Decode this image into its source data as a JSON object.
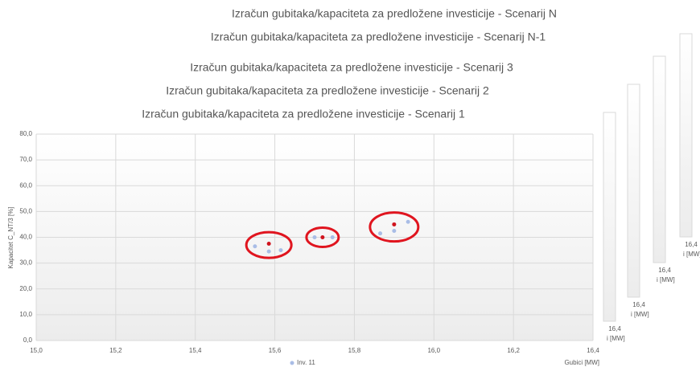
{
  "chart_data": {
    "type": "scatter",
    "titles": [
      "Izračun gubitaka/kapaciteta  za predložene investicije -  Scenarij N",
      "Izračun gubitaka/kapaciteta  za predložene investicije -  Scenarij N-1",
      "Izračun gubitaka/kapaciteta  za predložene investicije -  Scenarij  3",
      "Izračun gubitaka/kapaciteta  za predložene investicije -  Scenarij  2",
      "Izračun gubitaka/kapaciteta  za predložene investicije -  Scenarij  1"
    ],
    "background_panels": [
      {
        "tick": "16,4",
        "axis_label": "i [MW]"
      },
      {
        "tick": "16,4",
        "axis_label": "i [MW]"
      },
      {
        "tick": "16,4",
        "axis_label": "i [MW]"
      },
      {
        "tick": "16,4",
        "axis_label": "i [MW]"
      }
    ],
    "xlabel": "Gubici [MW]",
    "ylabel": "Kapacitet C_NT/3 [%]",
    "xlim": [
      15.0,
      16.4
    ],
    "ylim": [
      0,
      80
    ],
    "xticks": [
      {
        "value": 15.0,
        "label": "15,0"
      },
      {
        "value": 15.2,
        "label": "15,2"
      },
      {
        "value": 15.4,
        "label": "15,4"
      },
      {
        "value": 15.6,
        "label": "15,6"
      },
      {
        "value": 15.8,
        "label": "15,8"
      },
      {
        "value": 16.0,
        "label": "16,0"
      },
      {
        "value": 16.2,
        "label": "16,2"
      },
      {
        "value": 16.4,
        "label": "16,4"
      }
    ],
    "yticks": [
      {
        "value": 0,
        "label": "0,0"
      },
      {
        "value": 10,
        "label": "10,0"
      },
      {
        "value": 20,
        "label": "20,0"
      },
      {
        "value": 30,
        "label": "30,0"
      },
      {
        "value": 40,
        "label": "40,0"
      },
      {
        "value": 50,
        "label": "50,0"
      },
      {
        "value": 60,
        "label": "60,0"
      },
      {
        "value": 70,
        "label": "70,0"
      },
      {
        "value": 80,
        "label": "80,0"
      }
    ],
    "grid": true,
    "legend": "bottom",
    "series": [
      {
        "name": "Inv. 11",
        "color": "#a9bde6",
        "x": [
          15.55,
          15.585,
          15.615,
          15.7,
          15.745,
          15.865,
          15.9,
          15.935
        ],
        "values": [
          36.5,
          34.5,
          35.0,
          40.0,
          40.0,
          41.5,
          42.5,
          46.0
        ]
      },
      {
        "color": "#d0141e",
        "x": [
          15.585,
          15.72,
          15.9
        ],
        "values": [
          37.5,
          40.0,
          45.0
        ]
      }
    ]
  }
}
